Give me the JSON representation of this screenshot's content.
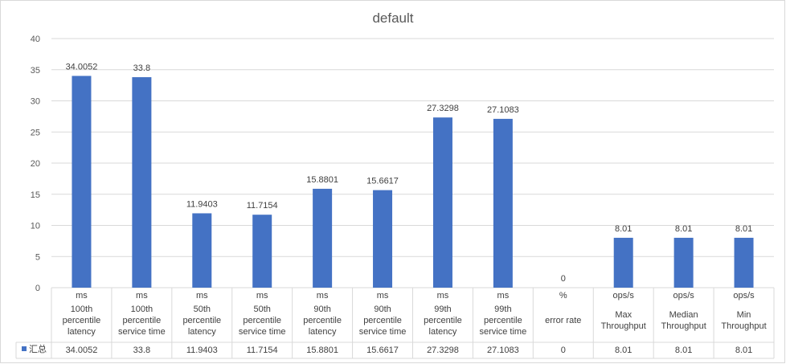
{
  "chart_data": {
    "type": "bar",
    "title": "default",
    "ylim": [
      0,
      40
    ],
    "yticks": [
      0,
      5,
      10,
      15,
      20,
      25,
      30,
      35,
      40
    ],
    "grid": true,
    "legend": "data-table",
    "categories": [
      {
        "unit": "ms",
        "label": "100th percentile latency",
        "lines": [
          "100th",
          "percentile",
          "latency"
        ]
      },
      {
        "unit": "ms",
        "label": "100th percentile service time",
        "lines": [
          "100th",
          "percentile",
          "service time"
        ]
      },
      {
        "unit": "ms",
        "label": "50th percentile latency",
        "lines": [
          "50th",
          "percentile",
          "latency"
        ]
      },
      {
        "unit": "ms",
        "label": "50th percentile service time",
        "lines": [
          "50th",
          "percentile",
          "service time"
        ]
      },
      {
        "unit": "ms",
        "label": "90th percentile latency",
        "lines": [
          "90th",
          "percentile",
          "latency"
        ]
      },
      {
        "unit": "ms",
        "label": "90th percentile service time",
        "lines": [
          "90th",
          "percentile",
          "service time"
        ]
      },
      {
        "unit": "ms",
        "label": "99th percentile latency",
        "lines": [
          "99th",
          "percentile",
          "latency"
        ]
      },
      {
        "unit": "ms",
        "label": "99th percentile service time",
        "lines": [
          "99th",
          "percentile",
          "service time"
        ]
      },
      {
        "unit": "%",
        "label": "error rate",
        "lines": [
          "error rate"
        ]
      },
      {
        "unit": "ops/s",
        "label": "Max Throughput",
        "lines": [
          "Max",
          "Throughput"
        ]
      },
      {
        "unit": "ops/s",
        "label": "Median Throughput",
        "lines": [
          "Median",
          "Throughput"
        ]
      },
      {
        "unit": "ops/s",
        "label": "Min Throughput",
        "lines": [
          "Min",
          "Throughput"
        ]
      }
    ],
    "series": [
      {
        "name": "汇总",
        "color": "#4472c4",
        "values": [
          34.0052,
          33.8,
          11.9403,
          11.7154,
          15.8801,
          15.6617,
          27.3298,
          27.1083,
          0,
          8.01,
          8.01,
          8.01
        ],
        "value_labels": [
          "34.0052",
          "33.8",
          "11.9403",
          "11.7154",
          "15.8801",
          "15.6617",
          "27.3298",
          "27.1083",
          "0",
          "8.01",
          "8.01",
          "8.01"
        ]
      }
    ]
  }
}
